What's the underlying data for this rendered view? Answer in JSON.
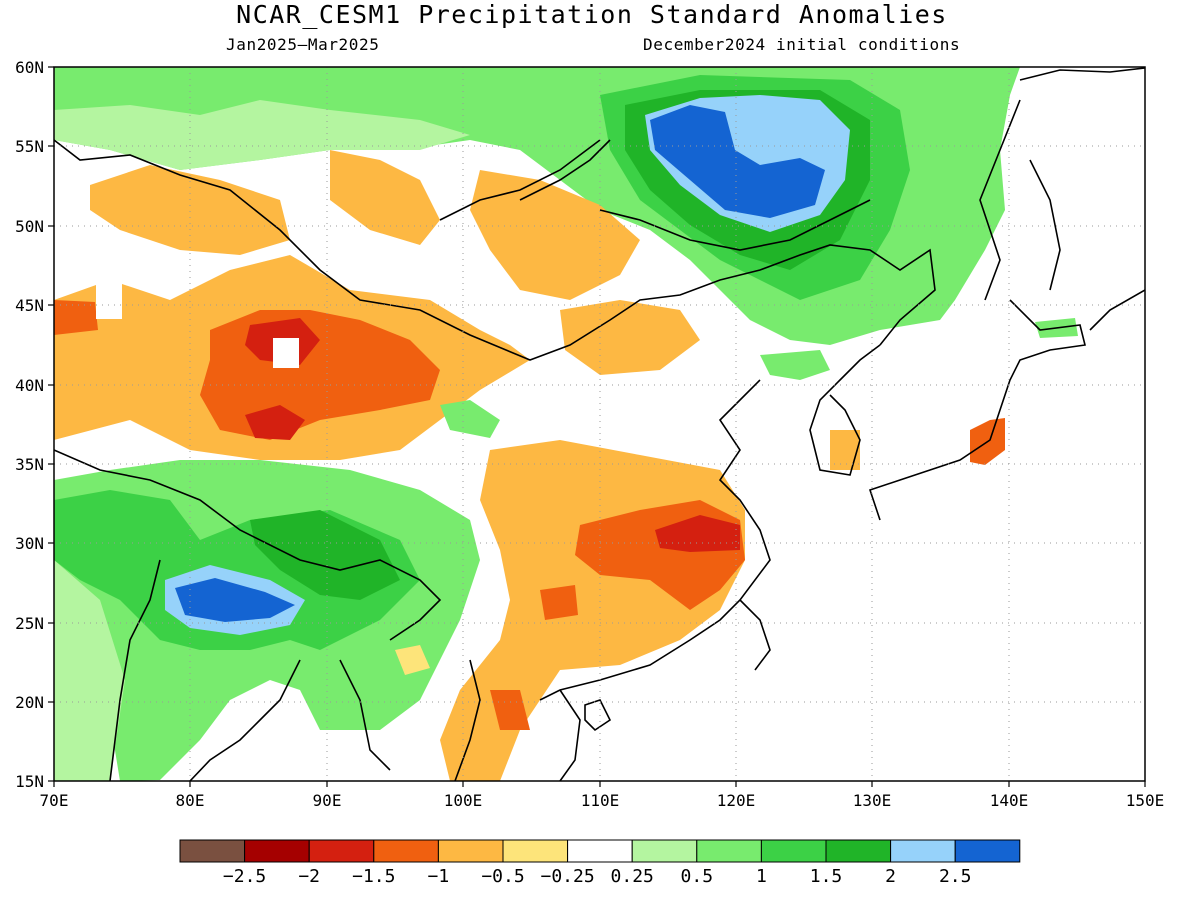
{
  "header": {
    "title": "NCAR_CESM1 Precipitation Standard Anomalies",
    "period": "Jan2025–Mar2025",
    "init": "December2024 initial conditions"
  },
  "map": {
    "lon_range": [
      70,
      150
    ],
    "lat_range": [
      15,
      60
    ],
    "lat_ticks": [
      "15N",
      "20N",
      "25N",
      "30N",
      "35N",
      "40N",
      "45N",
      "50N",
      "55N",
      "60N"
    ],
    "lon_ticks": [
      "70E",
      "80E",
      "90E",
      "100E",
      "110E",
      "120E",
      "130E",
      "140E",
      "150E"
    ],
    "grid": "dotted"
  },
  "colorbar": {
    "colors": [
      "#7a5040",
      "#a50000",
      "#d42010",
      "#f06010",
      "#fdb843",
      "#fde47a",
      "#ffffff",
      "#b4f5a0",
      "#78eb6e",
      "#3cd146",
      "#20b428",
      "#96d2fa",
      "#1464d2"
    ],
    "labels": [
      "−2.5",
      "−2",
      "−1.5",
      "−1",
      "−0.5",
      "−0.25",
      "0.25",
      "0.5",
      "1",
      "1.5",
      "2",
      "2.5"
    ]
  }
}
